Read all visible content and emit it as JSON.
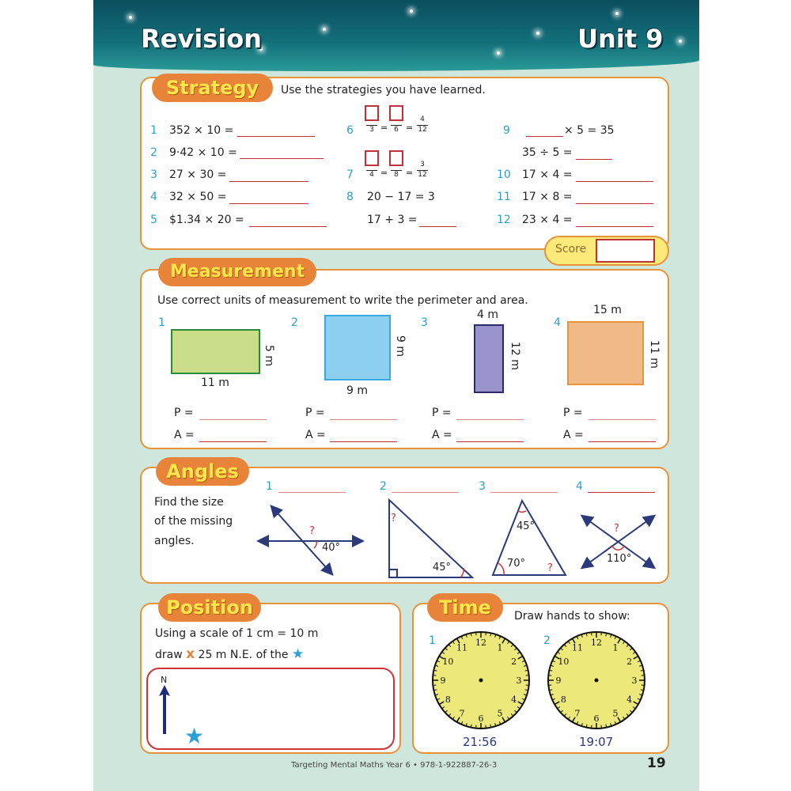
{
  "header": {
    "title": "Revision",
    "unit": "Unit 9"
  },
  "strategy": {
    "title": "Strategy",
    "instruction": "Use the strategies you have learned.",
    "q1": {
      "num": "1",
      "expr": "352 × 10 ="
    },
    "q2": {
      "num": "2",
      "expr": "9·42 × 10 ="
    },
    "q3": {
      "num": "3",
      "expr": "27 × 30 ="
    },
    "q4": {
      "num": "4",
      "expr": "32 × 50 ="
    },
    "q5": {
      "num": "5",
      "expr": "$1.34 × 20 ="
    },
    "q6": {
      "num": "6",
      "d1": "3",
      "d2": "6",
      "rn": "4",
      "rd": "12",
      "eq": "="
    },
    "q7": {
      "num": "7",
      "d1": "4",
      "d2": "8",
      "rn": "3",
      "rd": "12",
      "eq": "="
    },
    "q8": {
      "num": "8",
      "expr": "20 − 17 = 3",
      "expr2": "17 + 3 ="
    },
    "q9": {
      "num": "9",
      "expr": "× 5 = 35",
      "expr2": "35 ÷ 5 ="
    },
    "q10": {
      "num": "10",
      "expr": "17 × 4 ="
    },
    "q11": {
      "num": "11",
      "expr": "17 × 8 ="
    },
    "q12": {
      "num": "12",
      "expr": "23 × 4 ="
    },
    "score_label": "Score"
  },
  "measurement": {
    "title": "Measurement",
    "instruction": "Use correct units of measurement to write the perimeter and area.",
    "shapes": [
      {
        "num": "1",
        "side": "5 m",
        "bottom": "11 m",
        "color": "#c9dd88"
      },
      {
        "num": "2",
        "side": "9 m",
        "bottom": "9 m",
        "color": "#8ccff0"
      },
      {
        "num": "3",
        "top": "4 m",
        "side": "12 m",
        "color": "#9a94cc"
      },
      {
        "num": "4",
        "top": "15 m",
        "side": "11 m",
        "color": "#f0b986"
      }
    ],
    "p_label": "P =",
    "a_label": "A ="
  },
  "angles": {
    "title": "Angles",
    "instruction": [
      "Find the size",
      "of the missing",
      "angles."
    ],
    "nums": [
      "1",
      "2",
      "3",
      "4"
    ],
    "labels": {
      "a1": "40°",
      "q": "?",
      "a2": "45°",
      "a3top": "45°",
      "a3left": "70°",
      "a4": "110°"
    }
  },
  "position": {
    "title": "Position",
    "line1": "Using a scale of 1 cm = 10 m",
    "line2a": "draw",
    "marker": "x",
    "line2b": "25 m N.E. of the",
    "star": "★",
    "north": "N"
  },
  "time": {
    "title": "Time",
    "instruction": "Draw hands to show:",
    "clocks": [
      {
        "num": "1",
        "time": "21:56"
      },
      {
        "num": "2",
        "time": "19:07"
      }
    ],
    "numerals": [
      "12",
      "1",
      "2",
      "3",
      "4",
      "5",
      "6",
      "7",
      "8",
      "9",
      "10",
      "11"
    ]
  },
  "footer": {
    "text": "Targeting Mental Maths Year 6 • 978-1-922887-26-3",
    "page": "19"
  }
}
